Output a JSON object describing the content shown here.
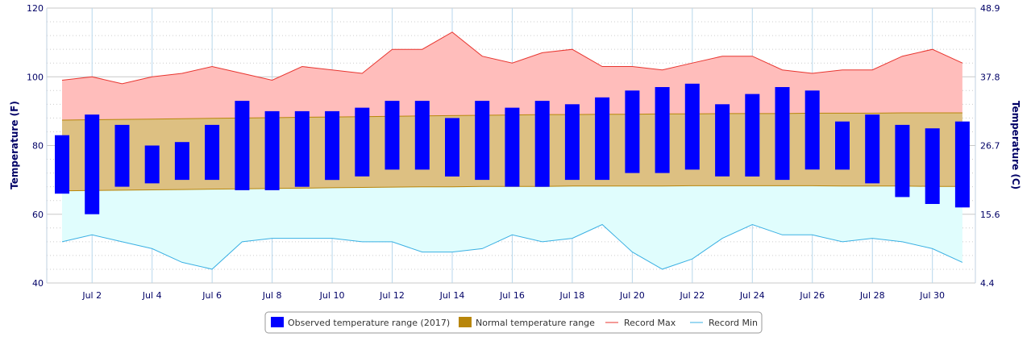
{
  "chart_data": {
    "type": "bar",
    "title": "",
    "ylabel_left": "Temperature (F)",
    "ylabel_right": "Temperature (C)",
    "ylim": [
      40,
      120
    ],
    "yticks_left": [
      "40",
      "60",
      "80",
      "100",
      "120"
    ],
    "yticks_right": [
      "4.4",
      "15.6",
      "26.7",
      "37.8",
      "48.9"
    ],
    "yticks_right_values_f": [
      40,
      60,
      80,
      100,
      120
    ],
    "x": [
      1,
      2,
      3,
      4,
      5,
      6,
      7,
      8,
      9,
      10,
      11,
      12,
      13,
      14,
      15,
      16,
      17,
      18,
      19,
      20,
      21,
      22,
      23,
      24,
      25,
      26,
      27,
      28,
      29,
      30,
      31
    ],
    "xtick_labels": [
      "Jul 2",
      "Jul 4",
      "Jul 6",
      "Jul 8",
      "Jul 10",
      "Jul 12",
      "Jul 14",
      "Jul 16",
      "Jul 18",
      "Jul 20",
      "Jul 22",
      "Jul 24",
      "Jul 26",
      "Jul 28",
      "Jul 30"
    ],
    "xtick_days": [
      2,
      4,
      6,
      8,
      10,
      12,
      14,
      16,
      18,
      20,
      22,
      24,
      26,
      28,
      30
    ],
    "grid": true,
    "legend_position": "bottom-center",
    "series": [
      {
        "name": "Observed temperature range (2017)",
        "kind": "floating-bar",
        "color": "#0000ff",
        "low": [
          66,
          60,
          68,
          69,
          70,
          70,
          67,
          67,
          68,
          70,
          71,
          73,
          73,
          71,
          70,
          68,
          68,
          70,
          70,
          72,
          72,
          73,
          71,
          71,
          70,
          73,
          73,
          69,
          65,
          63,
          62
        ],
        "high": [
          83,
          89,
          86,
          80,
          81,
          86,
          93,
          90,
          90,
          90,
          91,
          93,
          93,
          88,
          93,
          91,
          93,
          92,
          94,
          96,
          97,
          98,
          92,
          95,
          97,
          96,
          87,
          89,
          86,
          85,
          87
        ]
      },
      {
        "name": "Normal temperature range",
        "kind": "area-range",
        "color": "#b8860b",
        "fill": "#ddc082",
        "low": [
          66.8,
          66.9,
          67.0,
          67.1,
          67.2,
          67.3,
          67.4,
          67.5,
          67.6,
          67.7,
          67.8,
          67.9,
          68.0,
          68.0,
          68.1,
          68.1,
          68.1,
          68.2,
          68.2,
          68.2,
          68.2,
          68.3,
          68.3,
          68.3,
          68.3,
          68.3,
          68.2,
          68.2,
          68.2,
          68.1,
          68.1
        ],
        "high": [
          87.4,
          87.5,
          87.6,
          87.7,
          87.8,
          87.9,
          88.0,
          88.1,
          88.2,
          88.3,
          88.4,
          88.5,
          88.6,
          88.7,
          88.8,
          88.9,
          89.0,
          89.0,
          89.1,
          89.1,
          89.2,
          89.2,
          89.3,
          89.3,
          89.3,
          89.4,
          89.4,
          89.4,
          89.5,
          89.5,
          89.5
        ]
      },
      {
        "name": "Record Max",
        "kind": "line-area",
        "color": "#e8352f",
        "fill": "#ffbdbb",
        "values": [
          99,
          100,
          98,
          100,
          101,
          103,
          101,
          99,
          103,
          102,
          101,
          108,
          108,
          113,
          106,
          104,
          107,
          108,
          103,
          103,
          102,
          104,
          106,
          106,
          102,
          101,
          102,
          102,
          106,
          108,
          104
        ]
      },
      {
        "name": "Record Min",
        "kind": "line-area",
        "color": "#3ab0e3",
        "fill": "#e0fdfd",
        "values": [
          52,
          54,
          52,
          50,
          46,
          44,
          52,
          53,
          53,
          53,
          52,
          52,
          49,
          49,
          50,
          54,
          52,
          53,
          57,
          49,
          44,
          47,
          53,
          57,
          54,
          54,
          52,
          53,
          52,
          50,
          46
        ]
      }
    ]
  }
}
